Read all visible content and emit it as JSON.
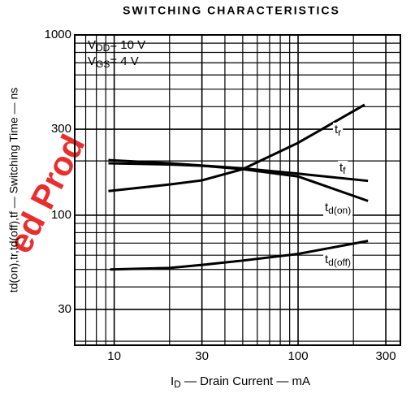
{
  "chart_data": {
    "type": "line",
    "title": "SWITCHING CHARACTERISTICS",
    "xlabel": {
      "main": "I",
      "sub": "D",
      "rest": " — Drain Current — mA"
    },
    "ylabel": "td(on),tr,td(off),tf — Switching Time — ns",
    "conditions": [
      {
        "main": "V",
        "sub": "DD",
        "rest": "= 10 V"
      },
      {
        "main": "V",
        "sub": "GS",
        "rest": "= 4 V"
      }
    ],
    "watermark": "ed Prod",
    "xscale": "log",
    "yscale": "log",
    "grid": true,
    "color": "#000000",
    "xlim": [
      6.1,
      360
    ],
    "ylim": [
      19,
      1000
    ],
    "xticks": [
      10,
      30,
      100,
      300
    ],
    "yticks": [
      30,
      100,
      300,
      1000
    ],
    "xminor": [
      7,
      8,
      9,
      20,
      40,
      50,
      60,
      70,
      80,
      90,
      200
    ],
    "yminor": [
      20,
      40,
      50,
      60,
      70,
      80,
      90,
      200,
      400,
      500,
      600,
      700,
      800,
      900
    ],
    "series": [
      {
        "name": {
          "main": "t",
          "sub": "r"
        },
        "x": [
          9.3,
          20,
          30,
          50,
          100,
          230
        ],
        "values": [
          136,
          148,
          156,
          180,
          252,
          410
        ]
      },
      {
        "name": {
          "main": "t",
          "sub": "f"
        },
        "x": [
          9.3,
          20,
          50,
          100,
          240
        ],
        "values": [
          202,
          194,
          182,
          170,
          155
        ]
      },
      {
        "name": {
          "main": "t",
          "sub": "d(on)"
        },
        "x": [
          9.3,
          20,
          30,
          50,
          100,
          240
        ],
        "values": [
          194,
          191,
          188,
          180,
          164,
          120
        ]
      },
      {
        "name": {
          "main": "t",
          "sub": "d(off)"
        },
        "x": [
          9.5,
          20,
          30,
          50,
          100,
          240
        ],
        "values": [
          50,
          51,
          53,
          56,
          61,
          72
        ]
      }
    ]
  }
}
